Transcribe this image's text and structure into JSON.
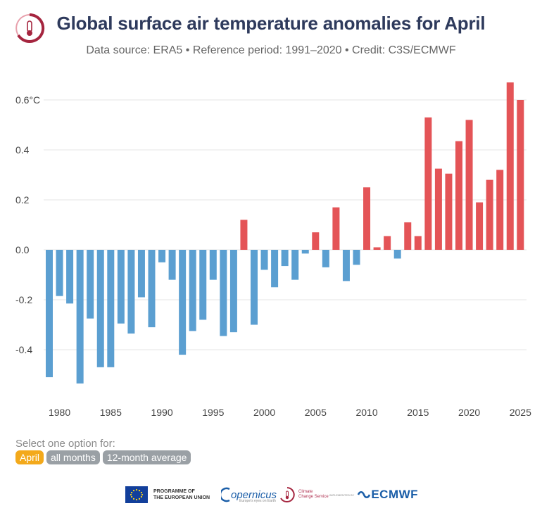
{
  "header": {
    "title": "Global surface air temperature anomalies for April",
    "subtitle": "Data source: ERA5 • Reference period: 1991–2020 • Credit: C3S/ECMWF"
  },
  "options": {
    "label": "Select one option for:",
    "items": [
      {
        "label": "April",
        "active": true
      },
      {
        "label": "all months",
        "active": false
      },
      {
        "label": "12-month average",
        "active": false
      }
    ]
  },
  "footer": {
    "eu_text_line1": "PROGRAMME OF",
    "eu_text_line2": "THE EUROPEAN UNION",
    "copernicus": "opernicus",
    "copernicus_sub": "Europe's eyes on Earth",
    "c3s_line1": "Climate",
    "c3s_line2": "Change Service",
    "implemented_by": "IMPLEMENTED BY",
    "ecmwf": "ECMWF"
  },
  "colors": {
    "positive": "#e45457",
    "negative": "#5b9fd1",
    "grid": "#e6e6e6",
    "title": "#2e3a5c"
  },
  "chart_data": {
    "type": "bar",
    "x_start": 1979,
    "years": [
      1979,
      1980,
      1981,
      1982,
      1983,
      1984,
      1985,
      1986,
      1987,
      1988,
      1989,
      1990,
      1991,
      1992,
      1993,
      1994,
      1995,
      1996,
      1997,
      1998,
      1999,
      2000,
      2001,
      2002,
      2003,
      2004,
      2005,
      2006,
      2007,
      2008,
      2009,
      2010,
      2011,
      2012,
      2013,
      2014,
      2015,
      2016,
      2017,
      2018,
      2019,
      2020,
      2021,
      2022,
      2023,
      2024,
      2025
    ],
    "values": [
      -0.51,
      -0.185,
      -0.215,
      -0.535,
      -0.275,
      -0.47,
      -0.47,
      -0.295,
      -0.335,
      -0.19,
      -0.31,
      -0.05,
      -0.12,
      -0.42,
      -0.325,
      -0.28,
      -0.12,
      -0.345,
      -0.33,
      0.12,
      -0.3,
      -0.08,
      -0.15,
      -0.065,
      -0.12,
      -0.015,
      0.07,
      -0.07,
      0.17,
      -0.125,
      -0.06,
      0.25,
      0.01,
      0.055,
      -0.035,
      0.11,
      0.055,
      0.53,
      0.325,
      0.305,
      0.435,
      0.52,
      0.19,
      0.28,
      0.32,
      0.67,
      0.6
    ],
    "yticks": [
      {
        "value": 0.6,
        "label": "0.6°C"
      },
      {
        "value": 0.4,
        "label": "0.4"
      },
      {
        "value": 0.2,
        "label": "0.2"
      },
      {
        "value": 0.0,
        "label": "0.0"
      },
      {
        "value": -0.2,
        "label": "-0.2"
      },
      {
        "value": -0.4,
        "label": "-0.4"
      }
    ],
    "xticks": [
      "1980",
      "1985",
      "1990",
      "1995",
      "2000",
      "2005",
      "2010",
      "2015",
      "2020",
      "2025"
    ],
    "ylim": [
      -0.6,
      0.7
    ],
    "grid": true,
    "xlabel": "",
    "ylabel": ""
  }
}
